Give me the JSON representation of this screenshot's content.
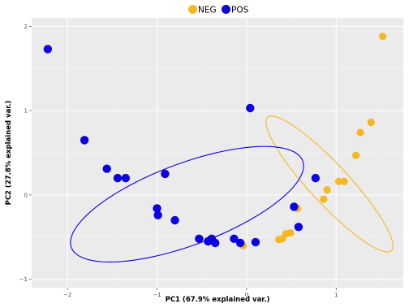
{
  "chart_data": {
    "type": "scatter",
    "title": "",
    "xlabel": "PC1 (67.9% explained var.)",
    "ylabel": "PC2 (27.8% explained var.)",
    "xlim": [
      -2.4,
      1.75
    ],
    "ylim": [
      -1.1,
      2.1
    ],
    "x_ticks": [
      -2,
      -1,
      0,
      1
    ],
    "y_ticks": [
      -1,
      0,
      1,
      2
    ],
    "x_tick_labels": [
      "−2",
      "−1",
      "0",
      "1"
    ],
    "y_tick_labels": [
      "−1",
      "0",
      "1",
      "2"
    ],
    "grid": true,
    "background": "#ebebeb",
    "legend": {
      "position": "top",
      "entries": [
        {
          "name": "NEG",
          "color": "#f5b822"
        },
        {
          "name": "POS",
          "color": "#0b00e0"
        }
      ]
    },
    "series": [
      {
        "name": "NEG",
        "color": "#f5b822",
        "points": [
          [
            1.52,
            1.88
          ],
          [
            1.39,
            0.86
          ],
          [
            1.27,
            0.74
          ],
          [
            1.22,
            0.47
          ],
          [
            1.09,
            0.16
          ],
          [
            1.03,
            0.16
          ],
          [
            0.9,
            0.06
          ],
          [
            0.86,
            -0.05
          ],
          [
            0.57,
            -0.16
          ],
          [
            0.49,
            -0.45
          ],
          [
            0.44,
            -0.46
          ],
          [
            0.4,
            -0.52
          ],
          [
            0.36,
            -0.53
          ],
          [
            -0.04,
            -0.6
          ]
        ]
      },
      {
        "name": "POS",
        "color": "#0b00e0",
        "points": [
          [
            -2.22,
            1.73
          ],
          [
            0.04,
            1.03
          ],
          [
            -1.81,
            0.65
          ],
          [
            -1.56,
            0.31
          ],
          [
            -1.44,
            0.2
          ],
          [
            -1.35,
            0.2
          ],
          [
            -0.91,
            0.25
          ],
          [
            -1.0,
            -0.16
          ],
          [
            -0.99,
            -0.24
          ],
          [
            -0.8,
            -0.3
          ],
          [
            -0.53,
            -0.52
          ],
          [
            -0.39,
            -0.52
          ],
          [
            -0.43,
            -0.55
          ],
          [
            -0.35,
            -0.57
          ],
          [
            -0.14,
            -0.52
          ],
          [
            -0.07,
            -0.57
          ],
          [
            0.1,
            -0.56
          ],
          [
            0.53,
            -0.14
          ],
          [
            0.77,
            0.2
          ],
          [
            0.58,
            -0.38
          ]
        ]
      }
    ],
    "ellipses": [
      {
        "group": "NEG",
        "color": "#f5b822",
        "center": [
          0.925,
          0.13
        ],
        "rx_data": 1.05,
        "ry_data": 0.225,
        "angle_deg": -49
      },
      {
        "group": "POS",
        "color": "#0b00e0",
        "center": [
          -0.665,
          -0.11
        ],
        "rx_data": 1.39,
        "ry_data": 0.48,
        "angle_deg": 22
      }
    ]
  }
}
